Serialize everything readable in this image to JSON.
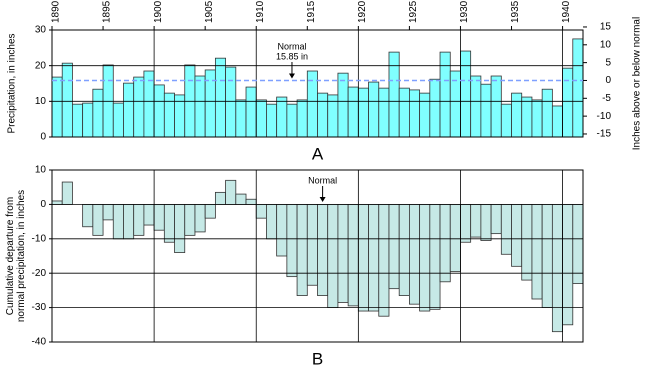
{
  "chart_data": [
    {
      "type": "bar",
      "panel_label": "A",
      "y_label": "Precipitation, in inches",
      "y2_label": "Inches above or below normal",
      "x": [
        1890,
        1891,
        1892,
        1893,
        1894,
        1895,
        1896,
        1897,
        1898,
        1899,
        1900,
        1901,
        1902,
        1903,
        1904,
        1905,
        1906,
        1907,
        1908,
        1909,
        1910,
        1911,
        1912,
        1913,
        1914,
        1915,
        1916,
        1917,
        1918,
        1919,
        1920,
        1921,
        1922,
        1923,
        1924,
        1925,
        1926,
        1927,
        1928,
        1929,
        1930,
        1931,
        1932,
        1933,
        1934,
        1935,
        1936,
        1937,
        1938,
        1939,
        1940,
        1941
      ],
      "values": [
        16.8,
        20.7,
        9.2,
        9.5,
        13.4,
        20.2,
        9.5,
        15.1,
        16.8,
        18.5,
        14.6,
        12.3,
        11.8,
        20.2,
        17.1,
        18.8,
        22.1,
        19.6,
        10.4,
        14.0,
        10.4,
        9.2,
        11.2,
        9.2,
        10.4,
        18.5,
        12.3,
        11.8,
        17.9,
        14.0,
        13.7,
        15.4,
        13.7,
        23.8,
        13.7,
        13.2,
        12.3,
        16.2,
        23.8,
        18.5,
        24.1,
        17.1,
        14.8,
        17.1,
        9.2,
        12.3,
        11.2,
        10.4,
        13.4,
        8.7,
        19.3,
        27.5
      ],
      "color": "#80ffff",
      "xlim": [
        1890,
        1942
      ],
      "xticks": [
        1890,
        1895,
        1900,
        1905,
        1910,
        1915,
        1920,
        1925,
        1930,
        1935,
        1940
      ],
      "ylim": [
        0,
        30
      ],
      "yticks": [
        0,
        10,
        20,
        30
      ],
      "y2lim": [
        -15.85,
        14.15
      ],
      "y2ticks": [
        -15,
        -10,
        -5,
        0,
        5,
        10,
        15
      ],
      "normal": 15.85,
      "normal_label": "Normal",
      "normal_value_label": "15.85 in",
      "normal_color": "#7fa0ff"
    },
    {
      "type": "bar",
      "panel_label": "B",
      "y_label": [
        "Cumulative departure from",
        "normal precipitation, in inches"
      ],
      "x": [
        1890,
        1891,
        1892,
        1893,
        1894,
        1895,
        1896,
        1897,
        1898,
        1899,
        1900,
        1901,
        1902,
        1903,
        1904,
        1905,
        1906,
        1907,
        1908,
        1909,
        1910,
        1911,
        1912,
        1913,
        1914,
        1915,
        1916,
        1917,
        1918,
        1919,
        1920,
        1921,
        1922,
        1923,
        1924,
        1925,
        1926,
        1927,
        1928,
        1929,
        1930,
        1931,
        1932,
        1933,
        1934,
        1935,
        1936,
        1937,
        1938,
        1939,
        1940,
        1941
      ],
      "values": [
        1.0,
        6.5,
        0,
        -6.5,
        -9,
        -4.5,
        -10,
        -10,
        -9,
        -6,
        -7.5,
        -11,
        -14,
        -9,
        -8,
        -4,
        3.5,
        7,
        3,
        1.5,
        -4,
        -10,
        -15,
        -21,
        -26.5,
        -23.5,
        -26.5,
        -30,
        -28.5,
        -29.5,
        -31,
        -31,
        -32.5,
        -24.5,
        -26.5,
        -29,
        -31,
        -30.5,
        -22.5,
        -19.5,
        -11,
        -9.5,
        -10.5,
        -8.5,
        -14.5,
        -18,
        -22,
        -27.5,
        -30,
        -37,
        -35,
        -23
      ],
      "color": "#c6e9e6",
      "xlim": [
        1890,
        1942
      ],
      "ylim": [
        -40,
        10
      ],
      "yticks": [
        -40,
        -30,
        -20,
        -10,
        0,
        10
      ],
      "annotation": "Normal"
    }
  ]
}
